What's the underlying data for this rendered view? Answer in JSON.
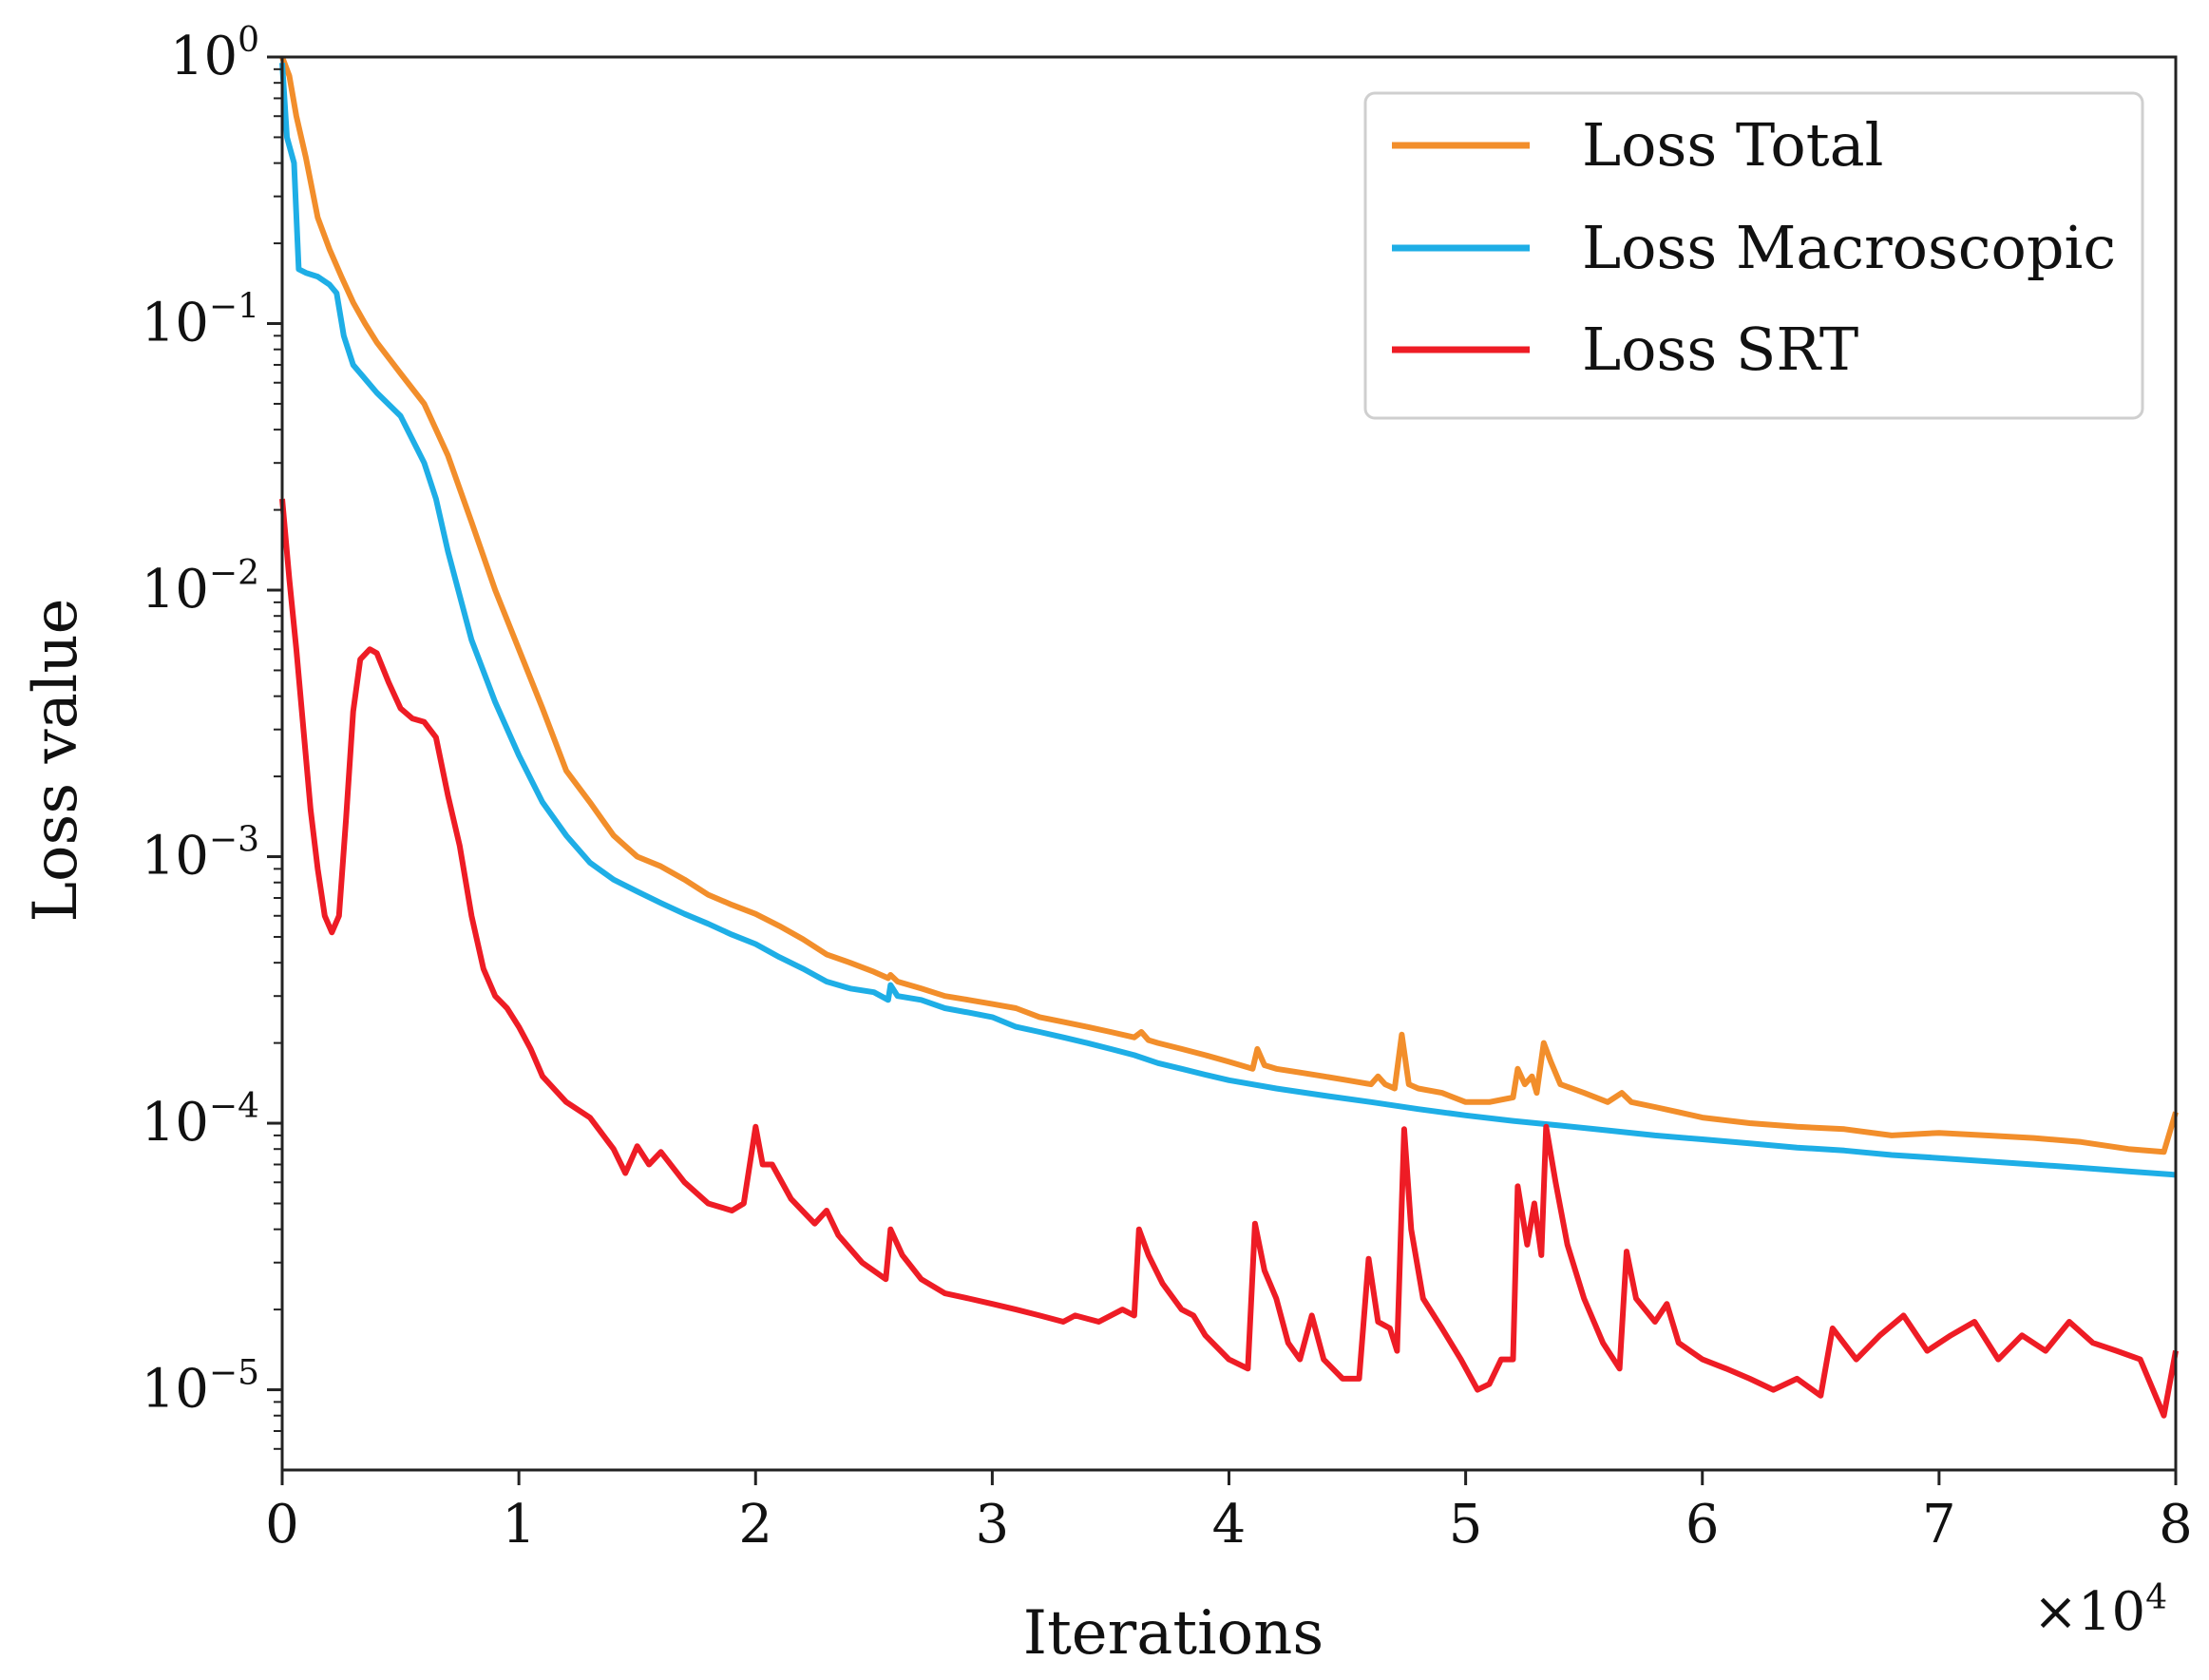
{
  "chart_data": {
    "type": "line",
    "xlabel": "Iterations",
    "ylabel": "Loss value",
    "x_multiplier_label": "×10",
    "x_multiplier_exp": "4",
    "x_scale": 10000,
    "xlim": [
      0,
      80000
    ],
    "ylim": [
      5e-06,
      1
    ],
    "y_scale": "log",
    "legend_position": "top-right",
    "grid": false,
    "x_ticks": [
      "0",
      "1",
      "2",
      "3",
      "4",
      "5",
      "6",
      "7",
      "8"
    ],
    "y_ticks": [
      {
        "base": "10",
        "exp": "0",
        "value": 1
      },
      {
        "base": "10",
        "exp": "−1",
        "value": 0.1
      },
      {
        "base": "10",
        "exp": "−2",
        "value": 0.01
      },
      {
        "base": "10",
        "exp": "−3",
        "value": 0.001
      },
      {
        "base": "10",
        "exp": "−4",
        "value": 0.0001
      },
      {
        "base": "10",
        "exp": "−5",
        "value": 1e-05
      }
    ],
    "series": [
      {
        "name": "Loss Total",
        "color": "#f28e2b",
        "points": [
          [
            0,
            1.0
          ],
          [
            300,
            0.85
          ],
          [
            600,
            0.6
          ],
          [
            1000,
            0.42
          ],
          [
            1500,
            0.25
          ],
          [
            2000,
            0.19
          ],
          [
            2500,
            0.15
          ],
          [
            3000,
            0.12
          ],
          [
            3500,
            0.1
          ],
          [
            4000,
            0.085
          ],
          [
            5000,
            0.065
          ],
          [
            6000,
            0.05
          ],
          [
            7000,
            0.032
          ],
          [
            8000,
            0.018
          ],
          [
            9000,
            0.01
          ],
          [
            10000,
            0.006
          ],
          [
            11000,
            0.0036
          ],
          [
            12000,
            0.0021
          ],
          [
            13000,
            0.0016
          ],
          [
            14000,
            0.0012
          ],
          [
            15000,
            0.001
          ],
          [
            16000,
            0.00092
          ],
          [
            17000,
            0.00082
          ],
          [
            18000,
            0.00072
          ],
          [
            19000,
            0.00066
          ],
          [
            20000,
            0.00061
          ],
          [
            21000,
            0.00055
          ],
          [
            22000,
            0.00049
          ],
          [
            23000,
            0.00043
          ],
          [
            24000,
            0.0004
          ],
          [
            25000,
            0.00037
          ],
          [
            25600,
            0.00035
          ],
          [
            25700,
            0.00036
          ],
          [
            26000,
            0.00034
          ],
          [
            27000,
            0.00032
          ],
          [
            28000,
            0.0003
          ],
          [
            29000,
            0.00029
          ],
          [
            30000,
            0.00028
          ],
          [
            31000,
            0.00027
          ],
          [
            32000,
            0.00025
          ],
          [
            33000,
            0.00024
          ],
          [
            34000,
            0.00023
          ],
          [
            35000,
            0.00022
          ],
          [
            36000,
            0.00021
          ],
          [
            36300,
            0.00022
          ],
          [
            36600,
            0.000205
          ],
          [
            37000,
            0.0002
          ],
          [
            38000,
            0.00019
          ],
          [
            39000,
            0.00018
          ],
          [
            40000,
            0.00017
          ],
          [
            41000,
            0.00016
          ],
          [
            41200,
            0.00019
          ],
          [
            41500,
            0.000165
          ],
          [
            42000,
            0.00016
          ],
          [
            43000,
            0.000155
          ],
          [
            44000,
            0.00015
          ],
          [
            45000,
            0.000145
          ],
          [
            46000,
            0.00014
          ],
          [
            46300,
            0.00015
          ],
          [
            46600,
            0.00014
          ],
          [
            47000,
            0.000135
          ],
          [
            47300,
            0.000215
          ],
          [
            47600,
            0.00014
          ],
          [
            48000,
            0.000135
          ],
          [
            49000,
            0.00013
          ],
          [
            50000,
            0.00012
          ],
          [
            51000,
            0.00012
          ],
          [
            52000,
            0.000125
          ],
          [
            52200,
            0.00016
          ],
          [
            52500,
            0.00014
          ],
          [
            52800,
            0.00015
          ],
          [
            53000,
            0.00013
          ],
          [
            53300,
            0.0002
          ],
          [
            53600,
            0.00017
          ],
          [
            54000,
            0.00014
          ],
          [
            55000,
            0.00013
          ],
          [
            56000,
            0.00012
          ],
          [
            56600,
            0.00013
          ],
          [
            57000,
            0.00012
          ],
          [
            58000,
            0.000115
          ],
          [
            59000,
            0.00011
          ],
          [
            60000,
            0.000105
          ],
          [
            62000,
            0.0001
          ],
          [
            64000,
            9.7e-05
          ],
          [
            66000,
            9.5e-05
          ],
          [
            68000,
            9e-05
          ],
          [
            70000,
            9.2e-05
          ],
          [
            72000,
            9e-05
          ],
          [
            74000,
            8.8e-05
          ],
          [
            76000,
            8.5e-05
          ],
          [
            78000,
            8e-05
          ],
          [
            79500,
            7.8e-05
          ],
          [
            80000,
            0.00011
          ]
        ]
      },
      {
        "name": "Loss Macroscopic",
        "color": "#1eaee6",
        "points": [
          [
            0,
            0.95
          ],
          [
            200,
            0.5
          ],
          [
            500,
            0.4
          ],
          [
            700,
            0.16
          ],
          [
            1000,
            0.155
          ],
          [
            1500,
            0.15
          ],
          [
            2000,
            0.14
          ],
          [
            2300,
            0.13
          ],
          [
            2600,
            0.09
          ],
          [
            3000,
            0.07
          ],
          [
            4000,
            0.055
          ],
          [
            5000,
            0.045
          ],
          [
            6000,
            0.03
          ],
          [
            6500,
            0.022
          ],
          [
            7000,
            0.014
          ],
          [
            8000,
            0.0065
          ],
          [
            9000,
            0.0038
          ],
          [
            10000,
            0.0024
          ],
          [
            11000,
            0.0016
          ],
          [
            12000,
            0.0012
          ],
          [
            13000,
            0.00095
          ],
          [
            14000,
            0.00082
          ],
          [
            15000,
            0.00074
          ],
          [
            16000,
            0.00067
          ],
          [
            17000,
            0.00061
          ],
          [
            18000,
            0.00056
          ],
          [
            19000,
            0.00051
          ],
          [
            20000,
            0.00047
          ],
          [
            21000,
            0.00042
          ],
          [
            22000,
            0.00038
          ],
          [
            23000,
            0.00034
          ],
          [
            24000,
            0.00032
          ],
          [
            25000,
            0.00031
          ],
          [
            25600,
            0.00029
          ],
          [
            25700,
            0.00033
          ],
          [
            26000,
            0.0003
          ],
          [
            27000,
            0.00029
          ],
          [
            28000,
            0.00027
          ],
          [
            29000,
            0.00026
          ],
          [
            30000,
            0.00025
          ],
          [
            31000,
            0.00023
          ],
          [
            32000,
            0.00022
          ],
          [
            33000,
            0.00021
          ],
          [
            34000,
            0.0002
          ],
          [
            35000,
            0.00019
          ],
          [
            36000,
            0.00018
          ],
          [
            37000,
            0.000168
          ],
          [
            38000,
            0.00016
          ],
          [
            39000,
            0.000152
          ],
          [
            40000,
            0.000145
          ],
          [
            42000,
            0.000135
          ],
          [
            44000,
            0.000127
          ],
          [
            46000,
            0.00012
          ],
          [
            48000,
            0.000113
          ],
          [
            50000,
            0.000107
          ],
          [
            52000,
            0.000102
          ],
          [
            54000,
            9.8e-05
          ],
          [
            56000,
            9.4e-05
          ],
          [
            58000,
            9e-05
          ],
          [
            60000,
            8.7e-05
          ],
          [
            62000,
            8.4e-05
          ],
          [
            64000,
            8.1e-05
          ],
          [
            66000,
            7.9e-05
          ],
          [
            68000,
            7.6e-05
          ],
          [
            70000,
            7.4e-05
          ],
          [
            72000,
            7.2e-05
          ],
          [
            74000,
            7e-05
          ],
          [
            76000,
            6.8e-05
          ],
          [
            78000,
            6.6e-05
          ],
          [
            80000,
            6.4e-05
          ]
        ]
      },
      {
        "name": "Loss SRT",
        "color": "#ee1c25",
        "points": [
          [
            0,
            0.022
          ],
          [
            300,
            0.011
          ],
          [
            600,
            0.006
          ],
          [
            900,
            0.003
          ],
          [
            1200,
            0.0015
          ],
          [
            1500,
            0.0009
          ],
          [
            1800,
            0.0006
          ],
          [
            2100,
            0.00052
          ],
          [
            2400,
            0.0006
          ],
          [
            2700,
            0.0014
          ],
          [
            3000,
            0.0035
          ],
          [
            3300,
            0.0055
          ],
          [
            3700,
            0.006
          ],
          [
            4000,
            0.0058
          ],
          [
            4500,
            0.0045
          ],
          [
            5000,
            0.0036
          ],
          [
            5500,
            0.0033
          ],
          [
            6000,
            0.0032
          ],
          [
            6500,
            0.0028
          ],
          [
            7000,
            0.0017
          ],
          [
            7500,
            0.0011
          ],
          [
            8000,
            0.0006
          ],
          [
            8500,
            0.00038
          ],
          [
            9000,
            0.0003
          ],
          [
            9500,
            0.00027
          ],
          [
            10000,
            0.00023
          ],
          [
            10500,
            0.00019
          ],
          [
            11000,
            0.00015
          ],
          [
            12000,
            0.00012
          ],
          [
            13000,
            0.000105
          ],
          [
            14000,
            8e-05
          ],
          [
            14500,
            6.5e-05
          ],
          [
            15000,
            8.2e-05
          ],
          [
            15500,
            7e-05
          ],
          [
            16000,
            7.8e-05
          ],
          [
            17000,
            6e-05
          ],
          [
            18000,
            5e-05
          ],
          [
            19000,
            4.7e-05
          ],
          [
            19500,
            5e-05
          ],
          [
            20000,
            9.7e-05
          ],
          [
            20300,
            7e-05
          ],
          [
            20700,
            7e-05
          ],
          [
            21500,
            5.2e-05
          ],
          [
            22500,
            4.2e-05
          ],
          [
            23000,
            4.7e-05
          ],
          [
            23500,
            3.8e-05
          ],
          [
            24500,
            3e-05
          ],
          [
            25500,
            2.6e-05
          ],
          [
            25700,
            4e-05
          ],
          [
            26200,
            3.2e-05
          ],
          [
            27000,
            2.6e-05
          ],
          [
            28000,
            2.3e-05
          ],
          [
            29000,
            2.2e-05
          ],
          [
            30000,
            2.1e-05
          ],
          [
            31000,
            2e-05
          ],
          [
            32000,
            1.9e-05
          ],
          [
            33000,
            1.8e-05
          ],
          [
            33500,
            1.9e-05
          ],
          [
            34500,
            1.8e-05
          ],
          [
            35500,
            2e-05
          ],
          [
            36000,
            1.9e-05
          ],
          [
            36200,
            4e-05
          ],
          [
            36600,
            3.2e-05
          ],
          [
            37200,
            2.5e-05
          ],
          [
            38000,
            2e-05
          ],
          [
            38500,
            1.9e-05
          ],
          [
            39000,
            1.6e-05
          ],
          [
            40000,
            1.3e-05
          ],
          [
            40800,
            1.2e-05
          ],
          [
            41100,
            4.2e-05
          ],
          [
            41500,
            2.8e-05
          ],
          [
            42000,
            2.2e-05
          ],
          [
            42500,
            1.5e-05
          ],
          [
            43000,
            1.3e-05
          ],
          [
            43500,
            1.9e-05
          ],
          [
            44000,
            1.3e-05
          ],
          [
            44800,
            1.1e-05
          ],
          [
            45500,
            1.1e-05
          ],
          [
            45900,
            3.1e-05
          ],
          [
            46300,
            1.8e-05
          ],
          [
            46800,
            1.7e-05
          ],
          [
            47100,
            1.4e-05
          ],
          [
            47400,
            9.5e-05
          ],
          [
            47700,
            4e-05
          ],
          [
            48200,
            2.2e-05
          ],
          [
            49000,
            1.7e-05
          ],
          [
            49800,
            1.3e-05
          ],
          [
            50500,
            1e-05
          ],
          [
            51000,
            1.05e-05
          ],
          [
            51500,
            1.3e-05
          ],
          [
            52000,
            1.3e-05
          ],
          [
            52200,
            5.8e-05
          ],
          [
            52600,
            3.5e-05
          ],
          [
            52900,
            5e-05
          ],
          [
            53200,
            3.2e-05
          ],
          [
            53400,
            9.7e-05
          ],
          [
            53800,
            6e-05
          ],
          [
            54300,
            3.5e-05
          ],
          [
            55000,
            2.2e-05
          ],
          [
            55800,
            1.5e-05
          ],
          [
            56500,
            1.2e-05
          ],
          [
            56800,
            3.3e-05
          ],
          [
            57200,
            2.2e-05
          ],
          [
            58000,
            1.8e-05
          ],
          [
            58500,
            2.1e-05
          ],
          [
            59000,
            1.5e-05
          ],
          [
            60000,
            1.3e-05
          ],
          [
            61000,
            1.2e-05
          ],
          [
            62000,
            1.1e-05
          ],
          [
            63000,
            1e-05
          ],
          [
            64000,
            1.1e-05
          ],
          [
            65000,
            9.5e-06
          ],
          [
            65500,
            1.7e-05
          ],
          [
            66500,
            1.3e-05
          ],
          [
            67500,
            1.6e-05
          ],
          [
            68500,
            1.9e-05
          ],
          [
            69500,
            1.4e-05
          ],
          [
            70500,
            1.6e-05
          ],
          [
            71500,
            1.8e-05
          ],
          [
            72500,
            1.3e-05
          ],
          [
            73500,
            1.6e-05
          ],
          [
            74500,
            1.4e-05
          ],
          [
            75500,
            1.8e-05
          ],
          [
            76500,
            1.5e-05
          ],
          [
            77500,
            1.4e-05
          ],
          [
            78500,
            1.3e-05
          ],
          [
            79500,
            8e-06
          ],
          [
            80000,
            1.4e-05
          ]
        ]
      }
    ]
  }
}
